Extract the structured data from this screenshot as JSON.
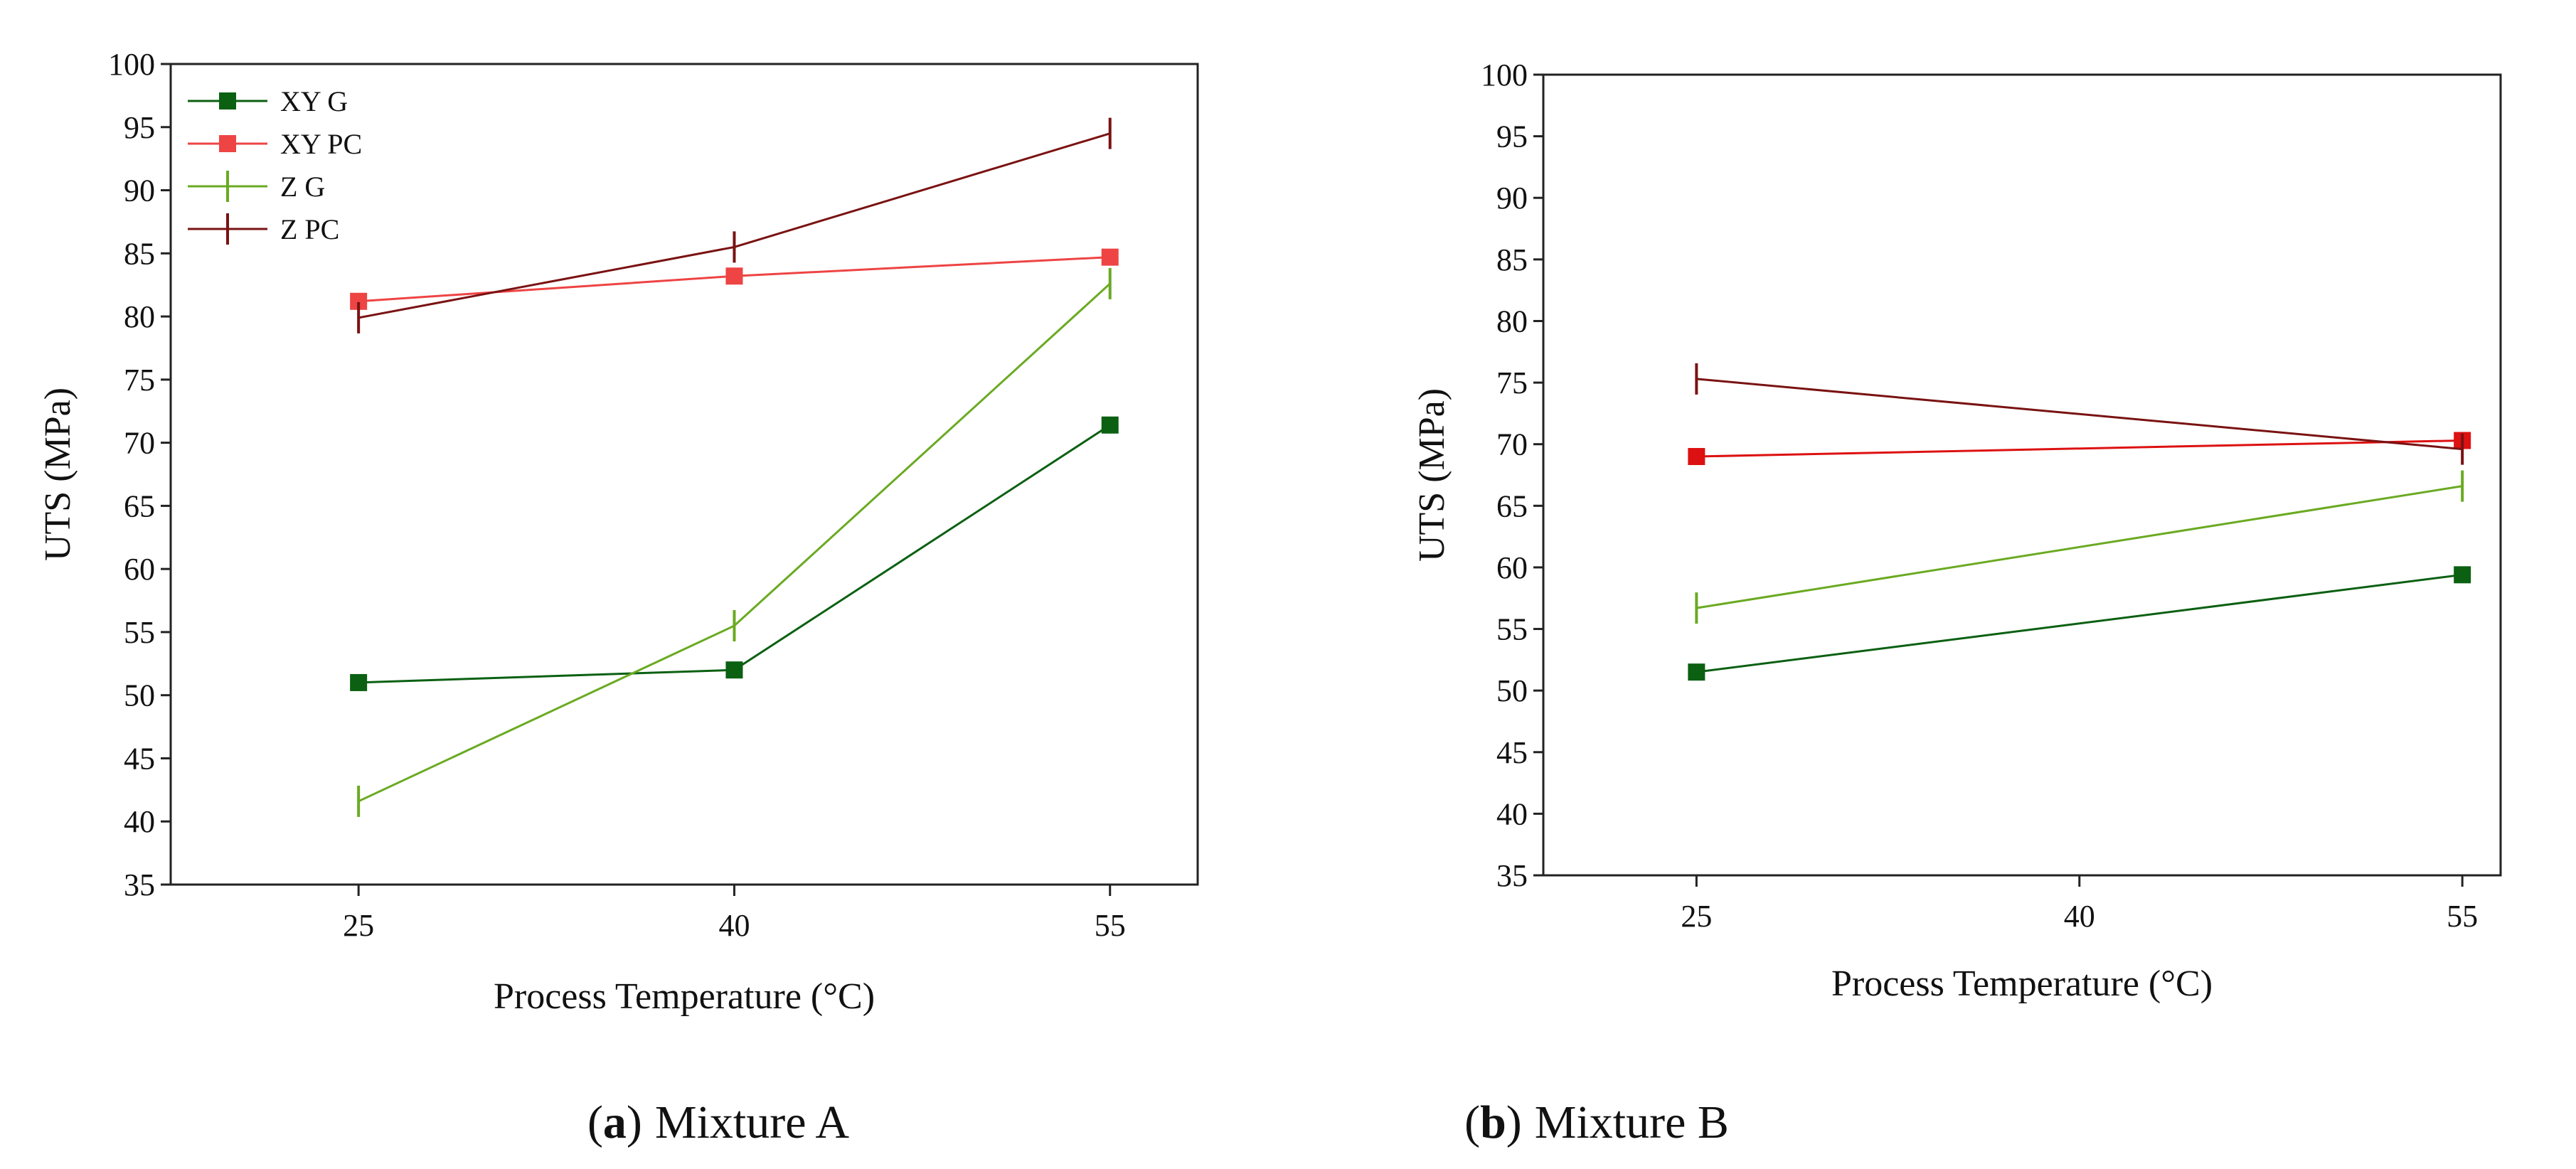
{
  "figure": {
    "captions": [
      {
        "open": "(",
        "letter": "a",
        "close": ")",
        "text": "Mixture A"
      },
      {
        "open": "(",
        "letter": "b",
        "close": ")",
        "text": "Mixture B"
      }
    ]
  },
  "chart_data": [
    {
      "type": "line",
      "panel": "a",
      "title": "",
      "xlabel": "Process Temperature (°C)",
      "ylabel": "UTS (MPa)",
      "x": [
        25,
        40,
        55
      ],
      "xticks": [
        25,
        40,
        55
      ],
      "xlim": [
        17.5,
        58.5
      ],
      "ylim": [
        35,
        100
      ],
      "yticks": [
        35,
        40,
        45,
        50,
        55,
        60,
        65,
        70,
        75,
        80,
        85,
        90,
        95,
        100
      ],
      "legend_position": "top-left",
      "series": [
        {
          "name": "XY G",
          "color": "#0b6012",
          "marker": "square",
          "values": [
            51.0,
            52.0,
            71.4
          ]
        },
        {
          "name": "XY PC",
          "color": "#ee4444",
          "marker": "square",
          "values": [
            81.2,
            83.2,
            84.7
          ]
        },
        {
          "name": "Z G",
          "color": "#6aaa22",
          "marker": "vbar",
          "values": [
            41.6,
            55.5,
            82.6
          ]
        },
        {
          "name": "Z PC",
          "color": "#7a1212",
          "marker": "vbar",
          "values": [
            79.9,
            85.5,
            94.5
          ]
        }
      ]
    },
    {
      "type": "line",
      "panel": "b",
      "title": "",
      "xlabel": "Process Temperature (°C)",
      "ylabel": "UTS (MPa)",
      "x": [
        25,
        55
      ],
      "xticks": [
        25,
        40,
        55
      ],
      "xlim": [
        19,
        56.5
      ],
      "ylim": [
        35,
        100
      ],
      "yticks": [
        35,
        40,
        45,
        50,
        55,
        60,
        65,
        70,
        75,
        80,
        85,
        90,
        95,
        100
      ],
      "legend_position": "none",
      "series": [
        {
          "name": "XY G",
          "color": "#0b6012",
          "marker": "square",
          "values": [
            51.5,
            59.4
          ]
        },
        {
          "name": "XY PC",
          "color": "#dd1111",
          "marker": "square",
          "values": [
            69.0,
            70.3
          ]
        },
        {
          "name": "Z G",
          "color": "#6aaa22",
          "marker": "vbar",
          "values": [
            56.7,
            66.6
          ]
        },
        {
          "name": "Z PC",
          "color": "#7a1212",
          "marker": "vbar",
          "values": [
            75.3,
            69.6
          ]
        }
      ]
    }
  ]
}
